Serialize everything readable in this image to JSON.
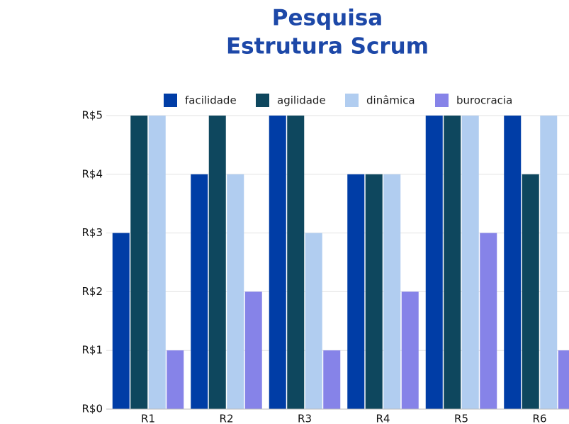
{
  "chart_data": {
    "type": "bar",
    "title": [
      "Pesquisa",
      "Estrutura Scrum"
    ],
    "categories": [
      "R1",
      "R2",
      "R3",
      "R4",
      "R5",
      "R6"
    ],
    "series": [
      {
        "name": "facilidade",
        "color": "#003da6",
        "values": [
          3,
          4,
          5,
          4,
          5,
          5
        ]
      },
      {
        "name": "agilidade",
        "color": "#0e475e",
        "values": [
          5,
          5,
          5,
          4,
          5,
          4
        ]
      },
      {
        "name": "dinâmica",
        "color": "#b1cdf0",
        "values": [
          5,
          4,
          3,
          4,
          5,
          5
        ]
      },
      {
        "name": "burocracia",
        "color": "#8683e8",
        "values": [
          1,
          2,
          1,
          2,
          3,
          1
        ]
      }
    ],
    "ylim": [
      0,
      5
    ],
    "yticks": [
      {
        "value": 0,
        "label": "R$0"
      },
      {
        "value": 1,
        "label": "R$1"
      },
      {
        "value": 2,
        "label": "R$2"
      },
      {
        "value": 3,
        "label": "R$3"
      },
      {
        "value": 4,
        "label": "R$4"
      },
      {
        "value": 5,
        "label": "R$5"
      }
    ],
    "grid": true,
    "legend": "top"
  }
}
